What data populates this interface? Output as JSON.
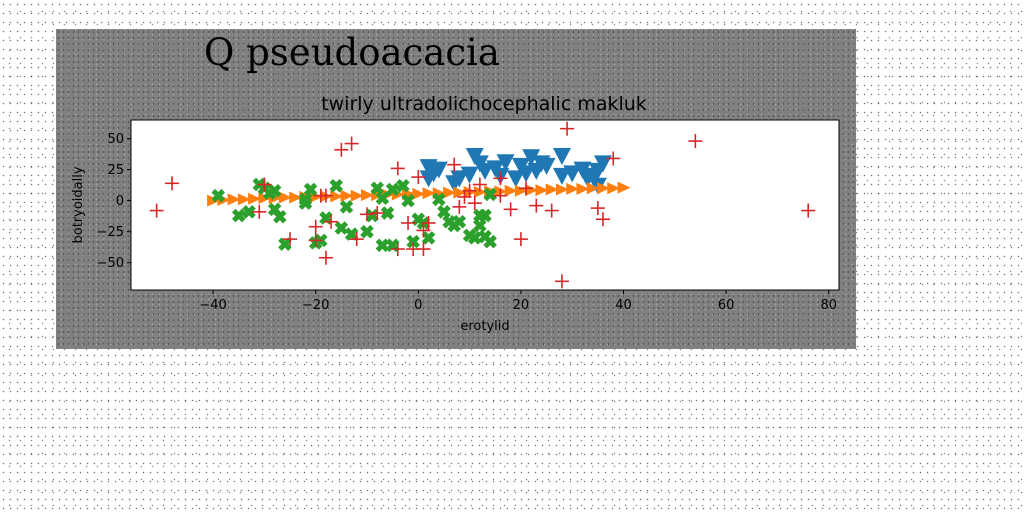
{
  "chart_data": {
    "type": "scatter",
    "suptitle": "Q pseudoacacia",
    "title": "twirly ultradolichocephalic makluk",
    "xlabel": "erotylid",
    "ylabel": "botryoidally",
    "xlim": [
      -56,
      82
    ],
    "ylim": [
      -72,
      65
    ],
    "xticks": [
      -40,
      -20,
      0,
      20,
      40,
      60,
      80
    ],
    "yticks": [
      -50,
      -25,
      0,
      25,
      50
    ],
    "xtick_labels": [
      "−40",
      "−20",
      "0",
      "20",
      "40",
      "60",
      "80"
    ],
    "ytick_labels": [
      "−50",
      "−25",
      "0",
      "25",
      "50"
    ],
    "grid": false,
    "legend": "none",
    "series": [
      {
        "marker": "triangle-down",
        "color": "#1f77b4",
        "points": [
          [
            2,
            27
          ],
          [
            2,
            18
          ],
          [
            3,
            22
          ],
          [
            4,
            25
          ],
          [
            7,
            14
          ],
          [
            8,
            18
          ],
          [
            10,
            21
          ],
          [
            11,
            36
          ],
          [
            12,
            30
          ],
          [
            13,
            24
          ],
          [
            15,
            26
          ],
          [
            16,
            20
          ],
          [
            17,
            31
          ],
          [
            19,
            18
          ],
          [
            20,
            28
          ],
          [
            21,
            22
          ],
          [
            22,
            35
          ],
          [
            23,
            24
          ],
          [
            24,
            30
          ],
          [
            25,
            28
          ],
          [
            28,
            36
          ],
          [
            28,
            20
          ],
          [
            30,
            22
          ],
          [
            32,
            25
          ],
          [
            33,
            18
          ],
          [
            34,
            20
          ],
          [
            35,
            12
          ],
          [
            35,
            24
          ],
          [
            36,
            30
          ]
        ]
      },
      {
        "marker": "triangle-right",
        "color": "#ff7f0e",
        "points": [
          [
            -40,
            0
          ],
          [
            -38,
            0.5
          ],
          [
            -36,
            1
          ],
          [
            -34,
            1
          ],
          [
            -32,
            1.5
          ],
          [
            -30,
            2
          ],
          [
            -28,
            2
          ],
          [
            -26,
            2.5
          ],
          [
            -24,
            2.5
          ],
          [
            -22,
            3
          ],
          [
            -20,
            3
          ],
          [
            -18,
            3.5
          ],
          [
            -16,
            3.5
          ],
          [
            -14,
            4
          ],
          [
            -12,
            4
          ],
          [
            -10,
            4.5
          ],
          [
            -8,
            4.5
          ],
          [
            -6,
            5
          ],
          [
            -4,
            5
          ],
          [
            -2,
            5.5
          ],
          [
            0,
            5.5
          ],
          [
            2,
            6
          ],
          [
            4,
            6
          ],
          [
            6,
            6.5
          ],
          [
            8,
            6.5
          ],
          [
            10,
            7
          ],
          [
            12,
            7
          ],
          [
            14,
            7.5
          ],
          [
            16,
            7.5
          ],
          [
            18,
            8
          ],
          [
            20,
            8
          ],
          [
            22,
            8.5
          ],
          [
            24,
            8.5
          ],
          [
            26,
            9
          ],
          [
            28,
            9
          ],
          [
            30,
            9.5
          ],
          [
            32,
            9.5
          ],
          [
            34,
            10
          ],
          [
            36,
            10
          ],
          [
            38,
            10
          ],
          [
            40,
            10.5
          ]
        ]
      },
      {
        "marker": "x-filled",
        "color": "#2ca02c",
        "points": [
          [
            -39,
            4
          ],
          [
            -35,
            -12
          ],
          [
            -33,
            -9
          ],
          [
            -31,
            13
          ],
          [
            -30,
            10
          ],
          [
            -29,
            6
          ],
          [
            -28,
            -7
          ],
          [
            -28,
            8
          ],
          [
            -27,
            -13
          ],
          [
            -26,
            -35
          ],
          [
            -22,
            1
          ],
          [
            -22,
            -2
          ],
          [
            -21,
            9
          ],
          [
            -20,
            -34
          ],
          [
            -19,
            -32
          ],
          [
            -18,
            -14
          ],
          [
            -16,
            12
          ],
          [
            -15,
            -22
          ],
          [
            -14,
            -5
          ],
          [
            -13,
            -27
          ],
          [
            -10,
            -25
          ],
          [
            -9,
            -12
          ],
          [
            -8,
            10
          ],
          [
            -7,
            -36
          ],
          [
            -7,
            2
          ],
          [
            -6,
            -10
          ],
          [
            -5,
            -36
          ],
          [
            -5,
            9
          ],
          [
            -3,
            12
          ],
          [
            -2,
            0
          ],
          [
            -1,
            -33
          ],
          [
            0,
            -15
          ],
          [
            1,
            -18
          ],
          [
            2,
            -30
          ],
          [
            4,
            1
          ],
          [
            5,
            -9
          ],
          [
            6,
            -17
          ],
          [
            7,
            -20
          ],
          [
            8,
            -17
          ],
          [
            10,
            -28
          ],
          [
            11,
            -30
          ],
          [
            12,
            -20
          ],
          [
            12,
            -12
          ],
          [
            13,
            -29
          ],
          [
            13,
            -12
          ],
          [
            14,
            5
          ],
          [
            14,
            -33
          ]
        ]
      },
      {
        "marker": "plus",
        "color": "#d62728",
        "points": [
          [
            -51,
            -8
          ],
          [
            -48,
            14
          ],
          [
            -31,
            -9
          ],
          [
            -30,
            13
          ],
          [
            -25,
            -31
          ],
          [
            -20,
            -32
          ],
          [
            -20,
            -21
          ],
          [
            -19,
            4
          ],
          [
            -18,
            4
          ],
          [
            -18,
            -46
          ],
          [
            -17,
            -17
          ],
          [
            -15,
            41
          ],
          [
            -13,
            46
          ],
          [
            -12,
            -31
          ],
          [
            -10,
            -11
          ],
          [
            -8,
            -10
          ],
          [
            -4,
            -39
          ],
          [
            -4,
            26
          ],
          [
            -2,
            -18
          ],
          [
            -1,
            -39
          ],
          [
            0,
            19
          ],
          [
            1,
            -39
          ],
          [
            1,
            -24
          ],
          [
            2,
            -18
          ],
          [
            7,
            29
          ],
          [
            8,
            -5
          ],
          [
            9,
            3
          ],
          [
            10,
            8
          ],
          [
            11,
            -2
          ],
          [
            12,
            13
          ],
          [
            16,
            18
          ],
          [
            16,
            4
          ],
          [
            18,
            -7
          ],
          [
            20,
            -31
          ],
          [
            21,
            10
          ],
          [
            23,
            -4
          ],
          [
            26,
            -8
          ],
          [
            28,
            -65
          ],
          [
            29,
            58
          ],
          [
            35,
            -6
          ],
          [
            36,
            -15
          ],
          [
            38,
            34
          ],
          [
            54,
            48
          ],
          [
            76,
            -8
          ]
        ]
      }
    ]
  }
}
